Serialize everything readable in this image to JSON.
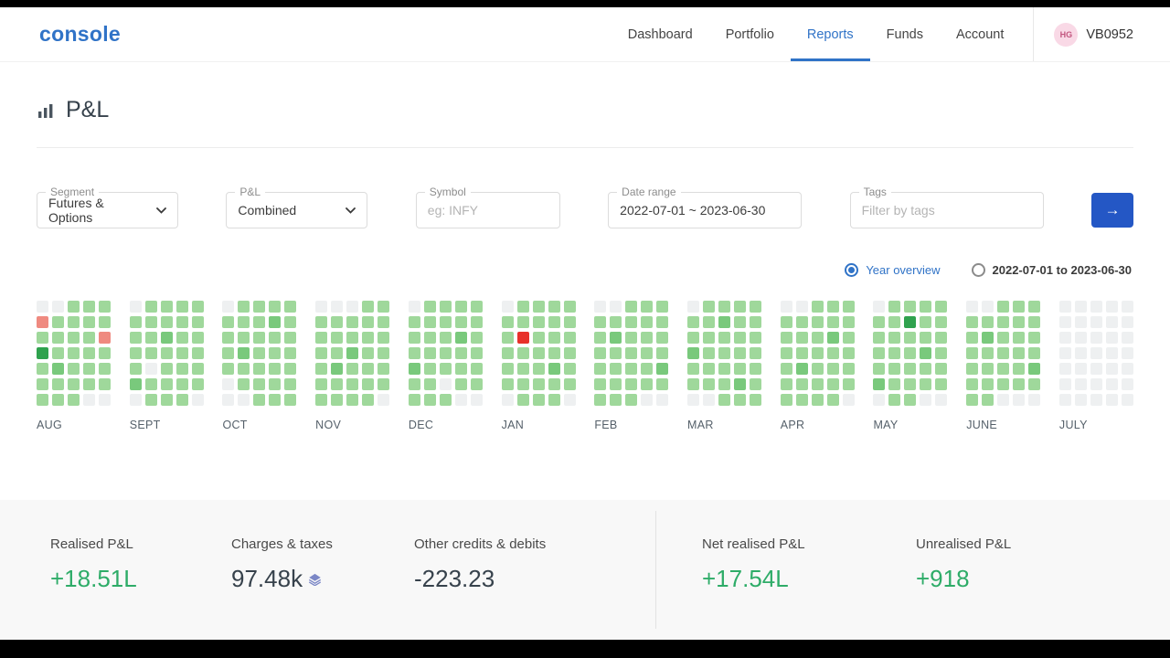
{
  "header": {
    "logo": "console",
    "nav": [
      {
        "label": "Dashboard",
        "active": false
      },
      {
        "label": "Portfolio",
        "active": false
      },
      {
        "label": "Reports",
        "active": true
      },
      {
        "label": "Funds",
        "active": false
      },
      {
        "label": "Account",
        "active": false
      }
    ],
    "user": {
      "initials": "HG",
      "id": "VB0952"
    }
  },
  "page": {
    "title": "P&L"
  },
  "filters": {
    "segment": {
      "label": "Segment",
      "value": "Futures & Options"
    },
    "pnl": {
      "label": "P&L",
      "value": "Combined"
    },
    "symbol": {
      "label": "Symbol",
      "placeholder": "eg: INFY"
    },
    "date_range": {
      "label": "Date range",
      "value": "2022-07-01 ~ 2023-06-30"
    },
    "tags": {
      "label": "Tags",
      "placeholder": "Filter by tags"
    },
    "submit_label": "→"
  },
  "view_options": [
    {
      "label": "Year overview",
      "selected": true
    },
    {
      "label": "2022-07-01 to 2023-06-30",
      "selected": false
    }
  ],
  "chart_data": {
    "type": "heatmap",
    "description": "Daily P&L calendar heatmap, Aug 2022 - Jul 2023. Cell codes: 0 no-data, 1 small profit, 2 medium profit, 3 large profit, 4 small loss, 5 large loss",
    "colors": {
      "0": "#eef0f1",
      "1": "#9fd89b",
      "2": "#79c97c",
      "3": "#2fa24e",
      "4": "#ef8a80",
      "5": "#e8312a"
    },
    "months": [
      {
        "label": "AUG",
        "cells": [
          "00111",
          "41111",
          "11114",
          "31111",
          "12111",
          "11111",
          "11100"
        ]
      },
      {
        "label": "SEPT",
        "cells": [
          "01111",
          "11111",
          "11211",
          "11111",
          "10111",
          "21111",
          "01110"
        ]
      },
      {
        "label": "OCT",
        "cells": [
          "01111",
          "11121",
          "11111",
          "12111",
          "11111",
          "01111",
          "00111"
        ]
      },
      {
        "label": "NOV",
        "cells": [
          "00011",
          "11111",
          "11111",
          "11211",
          "12111",
          "11111",
          "11110"
        ]
      },
      {
        "label": "DEC",
        "cells": [
          "01111",
          "11111",
          "11121",
          "11111",
          "21111",
          "11011",
          "11100"
        ]
      },
      {
        "label": "JAN",
        "cells": [
          "01111",
          "11111",
          "15111",
          "11111",
          "11121",
          "11111",
          "01110"
        ]
      },
      {
        "label": "FEB",
        "cells": [
          "00111",
          "11111",
          "12111",
          "11111",
          "11112",
          "11111",
          "11100"
        ]
      },
      {
        "label": "MAR",
        "cells": [
          "01111",
          "11211",
          "11111",
          "21111",
          "11111",
          "11121",
          "00111"
        ]
      },
      {
        "label": "APR",
        "cells": [
          "00111",
          "11111",
          "11121",
          "11111",
          "12111",
          "11111",
          "11110"
        ]
      },
      {
        "label": "MAY",
        "cells": [
          "01111",
          "11311",
          "11111",
          "11121",
          "11111",
          "21111",
          "01100"
        ]
      },
      {
        "label": "JUNE",
        "cells": [
          "00111",
          "11111",
          "12111",
          "11111",
          "11112",
          "11111",
          "11000"
        ]
      },
      {
        "label": "JULY",
        "cells": [
          "00000",
          "00000",
          "00000",
          "00000",
          "00000",
          "00000",
          "00000"
        ]
      }
    ]
  },
  "summary": {
    "items": [
      {
        "label": "Realised P&L",
        "value": "+18.51L",
        "color": "green",
        "icon": null,
        "divider_before": false
      },
      {
        "label": "Charges & taxes",
        "value": "97.48k",
        "color": "dark",
        "icon": "layers-icon",
        "divider_before": false
      },
      {
        "label": "Other credits & debits",
        "value": "-223.23",
        "color": "dark",
        "icon": null,
        "divider_before": false
      },
      {
        "label": "Net realised P&L",
        "value": "+17.54L",
        "color": "green",
        "icon": null,
        "divider_before": true
      },
      {
        "label": "Unrealised P&L",
        "value": "+918",
        "color": "green",
        "icon": null,
        "divider_before": false
      }
    ]
  }
}
